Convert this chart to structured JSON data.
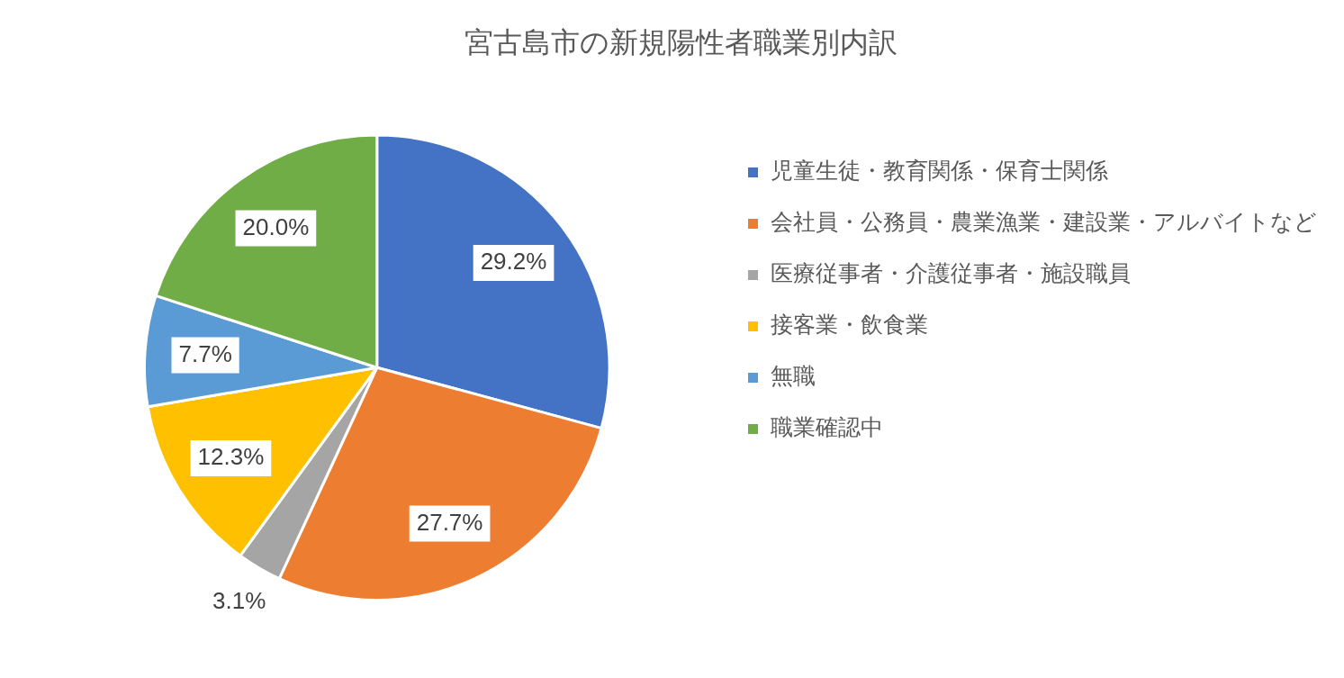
{
  "chart_data": {
    "type": "pie",
    "title": "宮古島市の新規陽性者職業別内訳",
    "categories": [
      "児童生徒・教育関係・保育士関係",
      "会社員・公務員・農業漁業・建設業・アルバイトなど",
      "医療従事者・介護従事者・施設職員",
      "接客業・飲食業",
      "無職",
      "職業確認中"
    ],
    "values": [
      29.2,
      27.7,
      3.1,
      12.3,
      7.7,
      20.0
    ],
    "value_labels": [
      "29.2%",
      "27.7%",
      "3.1%",
      "12.3%",
      "7.7%",
      "20.0%"
    ],
    "colors": [
      "#4472c4",
      "#ed7d31",
      "#a5a5a5",
      "#ffc000",
      "#5b9bd5",
      "#70ad47"
    ],
    "legend": "right"
  }
}
